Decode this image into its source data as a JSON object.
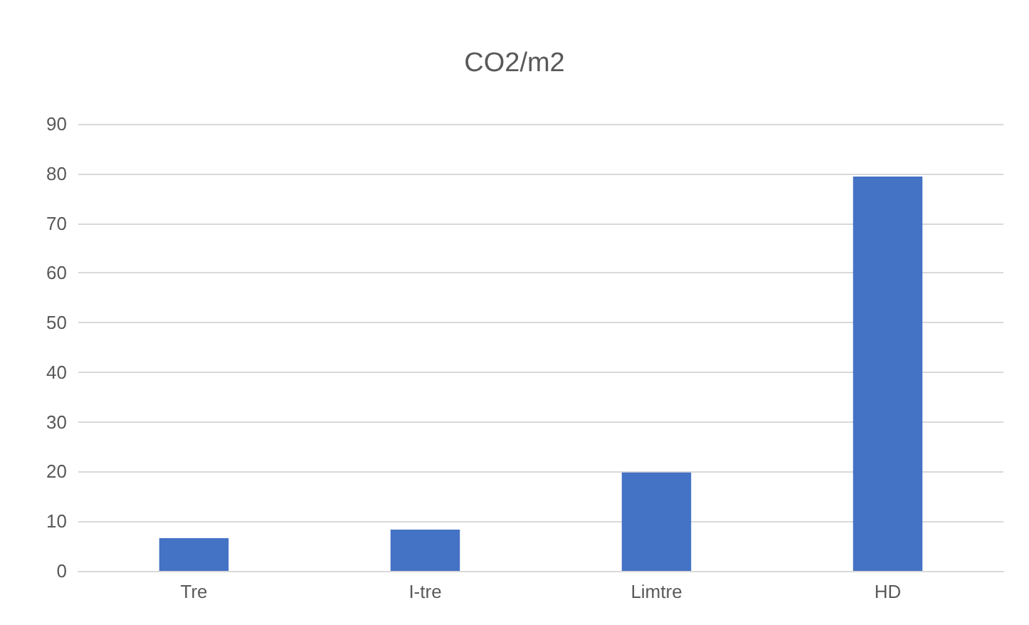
{
  "chart_data": {
    "type": "bar",
    "title": "CO2/m2",
    "categories": [
      "Tre",
      "I-tre",
      "Limtre",
      "HD"
    ],
    "values": [
      6.6,
      8.3,
      19.8,
      79.4
    ],
    "color": "#4472c4",
    "ylim": [
      0,
      90
    ],
    "yticks": [
      0,
      10,
      20,
      30,
      40,
      50,
      60,
      70,
      80,
      90
    ],
    "grid": "y"
  }
}
